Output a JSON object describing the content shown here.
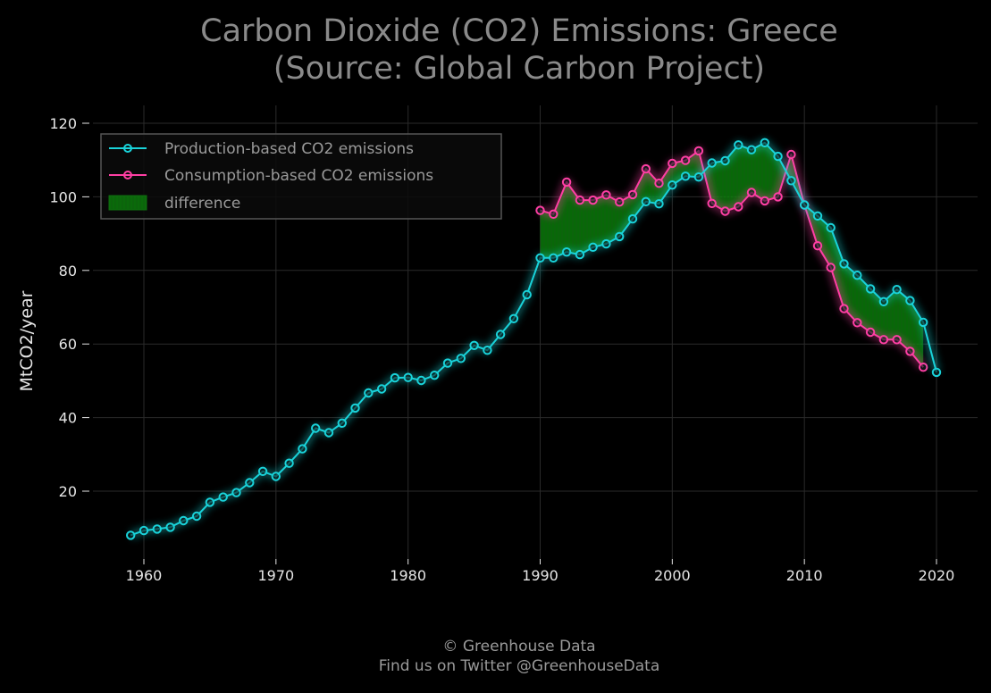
{
  "colors": {
    "background": "#000000",
    "title": "#8a8a8a",
    "text": "#e6e6e6",
    "grid": "#2a2a2a",
    "production": "#19d3da",
    "consumption": "#ff3fa4",
    "difference": "#0a8a0a",
    "legend_border": "#555555",
    "legend_text": "#9a9a9a",
    "footer": "#9a9a9a"
  },
  "chart_data": {
    "type": "line",
    "title": "Carbon Dioxide (CO2) Emissions: Greece\n(Source: Global Carbon Project)",
    "title_lines": [
      "Carbon Dioxide (CO2) Emissions: Greece",
      "(Source: Global Carbon Project)"
    ],
    "xlabel": "",
    "ylabel": "MtCO2/year",
    "xlim": [
      1958,
      2021.5
    ],
    "ylim": [
      2,
      120
    ],
    "xticks": [
      1960,
      1970,
      1980,
      1990,
      2000,
      2010,
      2020
    ],
    "yticks": [
      20,
      40,
      60,
      80,
      100,
      120
    ],
    "grid": true,
    "legend_position": "top-left",
    "legend": [
      "Production-based CO2 emissions",
      "Consumption-based CO2 emissions",
      "difference"
    ],
    "series": [
      {
        "name": "Production-based CO2 emissions",
        "x": [
          1959,
          1960,
          1961,
          1962,
          1963,
          1964,
          1965,
          1966,
          1967,
          1968,
          1969,
          1970,
          1971,
          1972,
          1973,
          1974,
          1975,
          1976,
          1977,
          1978,
          1979,
          1980,
          1981,
          1982,
          1983,
          1984,
          1985,
          1986,
          1987,
          1988,
          1989,
          1990,
          1991,
          1992,
          1993,
          1994,
          1995,
          1996,
          1997,
          1998,
          1999,
          2000,
          2001,
          2002,
          2003,
          2004,
          2005,
          2006,
          2007,
          2008,
          2009,
          2010,
          2011,
          2012,
          2013,
          2014,
          2015,
          2016,
          2017,
          2018,
          2019,
          2020
        ],
        "values": [
          8.0,
          9.3,
          9.7,
          10.2,
          12.0,
          13.2,
          17.0,
          18.4,
          19.6,
          22.3,
          25.4,
          24.0,
          27.6,
          31.5,
          37.1,
          35.9,
          38.5,
          42.6,
          46.7,
          47.8,
          50.8,
          50.9,
          50.1,
          51.5,
          54.8,
          56.1,
          59.6,
          58.3,
          62.6,
          66.9,
          73.4,
          83.4,
          83.4,
          85.0,
          84.3,
          86.3,
          87.2,
          89.2,
          94.0,
          98.7,
          98.1,
          103.2,
          105.6,
          105.4,
          109.2,
          109.8,
          114.1,
          112.8,
          114.7,
          111.0,
          104.4,
          97.8,
          94.8,
          91.6,
          81.8,
          78.7,
          75.0,
          71.5,
          74.8,
          71.8,
          65.9,
          52.3
        ]
      },
      {
        "name": "Consumption-based CO2 emissions",
        "x": [
          1990,
          1991,
          1992,
          1993,
          1994,
          1995,
          1996,
          1997,
          1998,
          1999,
          2000,
          2001,
          2002,
          2003,
          2004,
          2005,
          2006,
          2007,
          2008,
          2009,
          2010,
          2011,
          2012,
          2013,
          2014,
          2015,
          2016,
          2017,
          2018,
          2019
        ],
        "values": [
          96.3,
          95.3,
          104.0,
          99.1,
          99.1,
          100.5,
          98.6,
          100.6,
          107.6,
          103.7,
          109.1,
          109.9,
          112.5,
          98.2,
          96.1,
          97.3,
          101.2,
          98.9,
          100.0,
          111.5,
          97.8,
          86.7,
          80.8,
          69.6,
          65.8,
          63.2,
          61.2,
          61.2,
          58.0,
          53.7
        ]
      }
    ]
  },
  "footer": {
    "line1": "© Greenhouse Data",
    "line2": "Find us on Twitter @GreenhouseData"
  }
}
